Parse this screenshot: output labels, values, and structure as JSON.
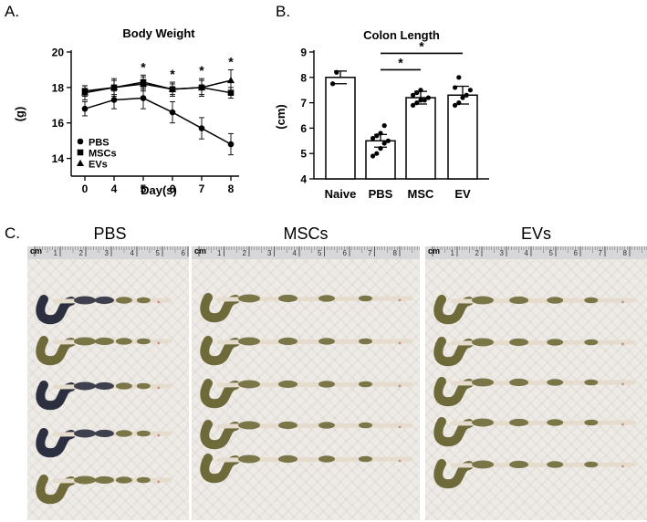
{
  "panels": {
    "a_letter": "A.",
    "b_letter": "B.",
    "c_letter": "C."
  },
  "photos": [
    {
      "title": "PBS",
      "ruler_unit": "cm",
      "ruler_numbers": [
        "1",
        "2",
        "3",
        "4",
        "5",
        "6"
      ]
    },
    {
      "title": "MSCs",
      "ruler_unit": "cm",
      "ruler_numbers": [
        "1",
        "2",
        "3",
        "4",
        "5",
        "6",
        "7",
        "8"
      ]
    },
    {
      "title": "EVs",
      "ruler_unit": "cm",
      "ruler_numbers": [
        "1",
        "2",
        "3",
        "4",
        "5",
        "6",
        "7",
        "8"
      ]
    }
  ],
  "colors": {
    "tissue_green": "#6f6a3a",
    "tissue_dark": "#2c2f3f",
    "tissue_pale": "#e6dccd",
    "tissue_pink": "#c98f87"
  },
  "chart_data": [
    {
      "type": "line",
      "title": "Body Weight",
      "xlabel": "Day(s)",
      "ylabel": "(g)",
      "x_ticks": [
        "0",
        "4",
        "5",
        "6",
        "7",
        "8"
      ],
      "y_ticks": [
        "14",
        "16",
        "18",
        "20"
      ],
      "ylim": [
        13,
        20
      ],
      "legend_placement": "bottom-left",
      "series": [
        {
          "name": "PBS",
          "marker": "circle",
          "values": [
            16.8,
            17.3,
            17.4,
            16.6,
            15.7,
            14.8
          ],
          "errors": [
            0.4,
            0.5,
            0.6,
            0.6,
            0.6,
            0.6
          ]
        },
        {
          "name": "MSCs",
          "marker": "square",
          "values": [
            17.8,
            18.0,
            18.3,
            17.9,
            18.0,
            17.7
          ],
          "errors": [
            0.3,
            0.4,
            0.4,
            0.3,
            0.4,
            0.3
          ]
        },
        {
          "name": "EVs",
          "marker": "triangle",
          "values": [
            17.7,
            18.0,
            18.2,
            17.9,
            18.0,
            18.4
          ],
          "errors": [
            0.4,
            0.5,
            0.4,
            0.4,
            0.5,
            0.6
          ]
        }
      ],
      "significance": [
        {
          "x": "5",
          "label": "*"
        },
        {
          "x": "6",
          "label": "*"
        },
        {
          "x": "7",
          "label": "*"
        },
        {
          "x": "8",
          "label": "*"
        }
      ]
    },
    {
      "type": "bar",
      "title": "Colon Length",
      "ylabel": "(cm)",
      "categories": [
        "Naive",
        "PBS",
        "MSC",
        "EV"
      ],
      "values": [
        8.0,
        5.5,
        7.2,
        7.3
      ],
      "errors": [
        0.25,
        0.25,
        0.25,
        0.35
      ],
      "y_ticks": [
        "4",
        "5",
        "6",
        "7",
        "8",
        "9"
      ],
      "ylim": [
        4,
        9
      ],
      "points": [
        [
          7.75,
          8.2
        ],
        [
          4.9,
          5.0,
          5.2,
          5.4,
          5.5,
          5.6,
          5.7,
          5.8,
          6.1
        ],
        [
          6.9,
          7.0,
          7.1,
          7.1,
          7.2,
          7.3,
          7.4,
          7.5
        ],
        [
          6.9,
          7.0,
          7.2,
          7.3,
          7.5,
          7.6,
          8.0
        ]
      ],
      "significance": [
        {
          "from": "PBS",
          "to": "MSC",
          "label": "*"
        },
        {
          "from": "PBS",
          "to": "EV",
          "label": "*"
        }
      ]
    }
  ]
}
